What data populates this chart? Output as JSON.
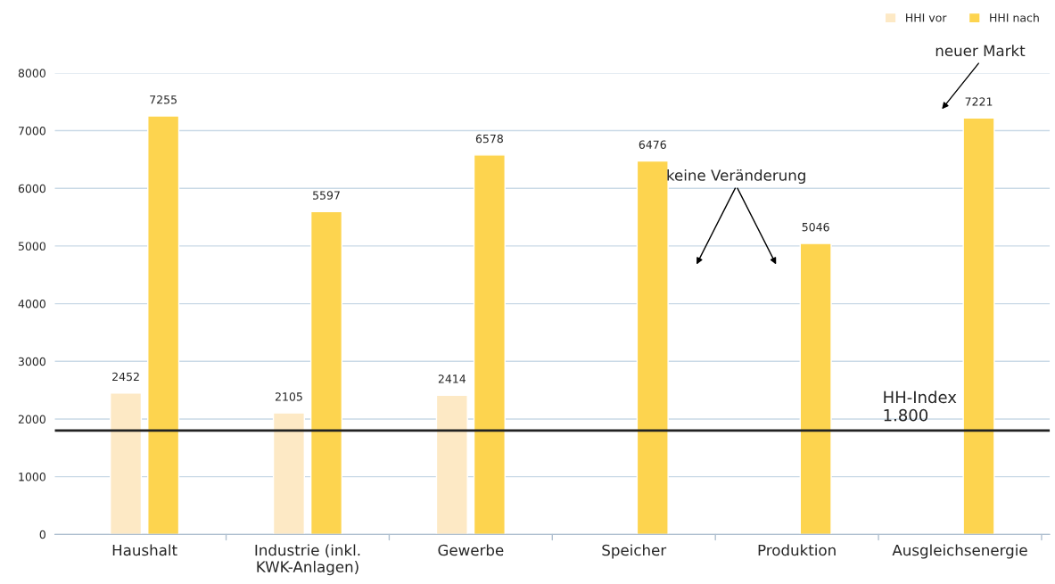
{
  "chart_data": {
    "type": "bar",
    "categories": [
      "Haushalt",
      "Industrie (inkl.\nKWK-Anlagen)",
      "Gewerbe",
      "Speicher",
      "Produktion",
      "Ausgleichsenergie"
    ],
    "series": [
      {
        "name": "HHI vor",
        "color": "#fde9c5",
        "values": [
          2452,
          2105,
          2414,
          null,
          null,
          null
        ]
      },
      {
        "name": "HHI nach",
        "color": "#fdd44f",
        "values": [
          7255,
          5597,
          6578,
          6476,
          5046,
          7221
        ]
      }
    ],
    "ylim": [
      0,
      8000
    ],
    "yticks": [
      0,
      1000,
      2000,
      3000,
      4000,
      5000,
      6000,
      7000,
      8000
    ],
    "grid": "y",
    "legend": "top right",
    "data_labels": true,
    "ref_lines": [
      {
        "axis": "y",
        "value": 1800,
        "label": "HH-Index\n1.800",
        "color": "#222222"
      }
    ],
    "annotations": [
      "keine Veränderung",
      "neuer Markt"
    ]
  }
}
